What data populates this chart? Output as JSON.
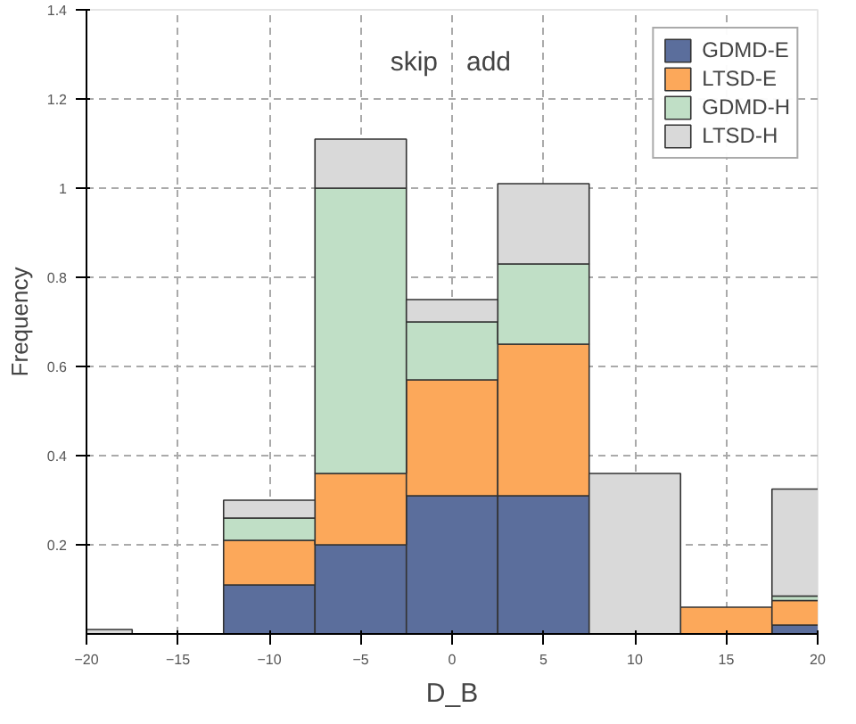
{
  "chart_data": {
    "type": "bar",
    "stacked": true,
    "xlabel": "D_B",
    "ylabel": "Frequency",
    "x": [
      -20,
      -10,
      -5,
      0,
      5,
      10,
      15,
      20
    ],
    "series": [
      {
        "name": "GDMD-E",
        "color": "#5b6e9c",
        "values": [
          0,
          0.11,
          0.2,
          0.31,
          0.31,
          0,
          0,
          0.02
        ]
      },
      {
        "name": "LTSD-E",
        "color": "#fca85a",
        "values": [
          0,
          0.1,
          0.16,
          0.26,
          0.34,
          0,
          0.06,
          0.055
        ]
      },
      {
        "name": "GDMD-H",
        "color": "#c0dfc6",
        "values": [
          0,
          0.05,
          0.64,
          0.13,
          0.18,
          0,
          0,
          0.01
        ]
      },
      {
        "name": "LTSD-H",
        "color": "#d9d9d9",
        "values": [
          0.01,
          0.04,
          0.11,
          0.05,
          0.18,
          0.36,
          0,
          0.24
        ]
      }
    ],
    "annotations": [
      "skip",
      "add"
    ],
    "xlim": [
      -20,
      20
    ],
    "xticks": [
      -20,
      -15,
      -10,
      -5,
      0,
      5,
      10,
      15,
      20
    ],
    "ylim": [
      0,
      1.4
    ],
    "yticks": [
      0.2,
      0.4,
      0.6,
      0.8,
      1,
      1.2,
      1.4
    ],
    "grid": true,
    "legend": "top right"
  }
}
